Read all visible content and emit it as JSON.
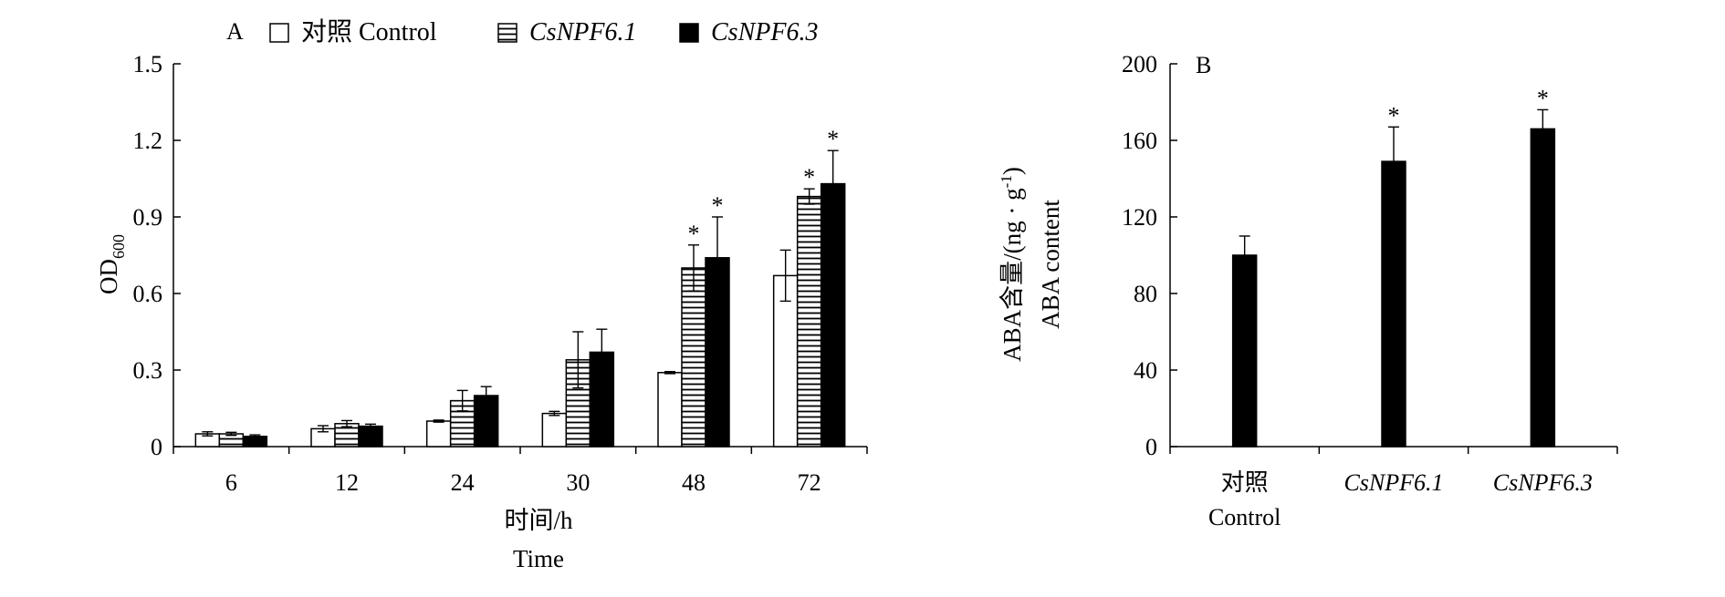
{
  "chart_data": [
    {
      "type": "bar",
      "panel_label": "A",
      "categories": [
        "6",
        "12",
        "24",
        "30",
        "48",
        "72"
      ],
      "series": [
        {
          "name": "对照 Control",
          "style": "open",
          "values": [
            0.05,
            0.07,
            0.1,
            0.13,
            0.29,
            0.67
          ],
          "errors": [
            0.008,
            0.012,
            0.004,
            0.008,
            0.004,
            0.1
          ],
          "significant": [
            false,
            false,
            false,
            false,
            false,
            false
          ]
        },
        {
          "name": "CsNPF6.1",
          "style": "hatched",
          "italic": true,
          "values": [
            0.05,
            0.09,
            0.18,
            0.34,
            0.7,
            0.98
          ],
          "errors": [
            0.006,
            0.012,
            0.04,
            0.11,
            0.09,
            0.03
          ],
          "significant": [
            false,
            false,
            false,
            false,
            true,
            true
          ]
        },
        {
          "name": "CsNPF6.3",
          "style": "solid",
          "italic": true,
          "values": [
            0.04,
            0.08,
            0.2,
            0.37,
            0.74,
            1.03
          ],
          "errors": [
            0.006,
            0.008,
            0.035,
            0.09,
            0.16,
            0.13
          ],
          "significant": [
            false,
            false,
            false,
            false,
            true,
            true
          ]
        }
      ],
      "significance_mark": "*",
      "ylabel_main": "OD",
      "ylabel_sub": "600",
      "xlabel": [
        "时间/h",
        "Time"
      ],
      "ylim": [
        0,
        1.5
      ],
      "yticks": [
        "0",
        "0.3",
        "0.6",
        "0.9",
        "1.2",
        "1.5"
      ],
      "legend_position": "top",
      "grid": false
    },
    {
      "type": "bar",
      "panel_label": "B",
      "categories": [
        {
          "lines": [
            "对照",
            "Control"
          ],
          "italic": false
        },
        {
          "lines": [
            "CsNPF6.1"
          ],
          "italic": true
        },
        {
          "lines": [
            "CsNPF6.3"
          ],
          "italic": true
        }
      ],
      "values": [
        100,
        149,
        166
      ],
      "errors": [
        10,
        18,
        10
      ],
      "significant": [
        false,
        true,
        true
      ],
      "significance_mark": "*",
      "ylabel": [
        "ABA含量/(ng · g",
        "-1",
        ")",
        "ABA content"
      ],
      "ylim": [
        0,
        200
      ],
      "yticks": [
        "0",
        "40",
        "80",
        "120",
        "160",
        "200"
      ],
      "grid": false
    }
  ]
}
